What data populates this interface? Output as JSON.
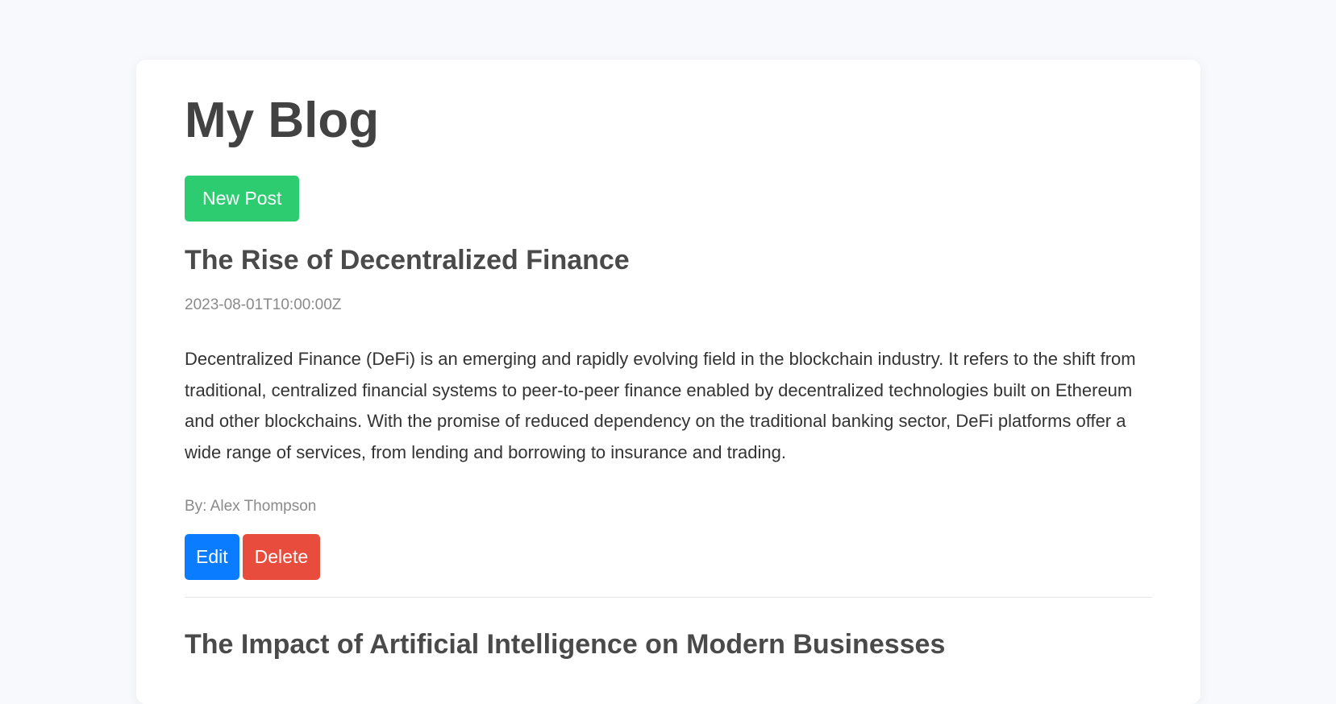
{
  "header": {
    "title": "My Blog",
    "new_post_label": "New Post"
  },
  "posts": [
    {
      "title": "The Rise of Decentralized Finance",
      "date": "2023-08-01T10:00:00Z",
      "body": "Decentralized Finance (DeFi) is an emerging and rapidly evolving field in the blockchain industry. It refers to the shift from traditional, centralized financial systems to peer-to-peer finance enabled by decentralized technologies built on Ethereum and other blockchains. With the promise of reduced dependency on the traditional banking sector, DeFi platforms offer a wide range of services, from lending and borrowing to insurance and trading.",
      "author": "By: Alex Thompson",
      "edit_label": "Edit",
      "delete_label": "Delete"
    },
    {
      "title": "The Impact of Artificial Intelligence on Modern Businesses"
    }
  ],
  "colors": {
    "new_post": "#2ecc71",
    "edit": "#0a7cff",
    "delete": "#e74c3c"
  }
}
